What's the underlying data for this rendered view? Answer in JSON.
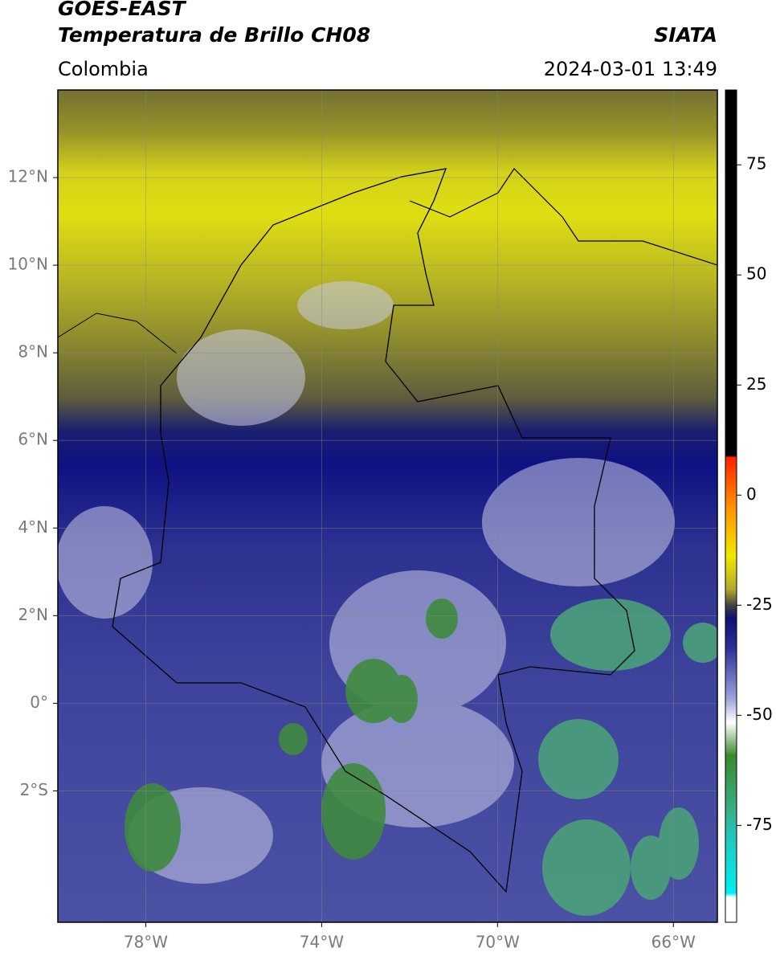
{
  "chart_data": {
    "type": "map",
    "title": "GOES-EAST",
    "subtitle": "Temperatura de Brillo CH08",
    "source": "SIATA",
    "region": "Colombia",
    "datetime": "2024-03-01 13:49",
    "xlim": [
      -80,
      -65
    ],
    "ylim": [
      -5,
      14
    ],
    "xticks": [
      {
        "value": -78,
        "label": "78°W"
      },
      {
        "value": -74,
        "label": "74°W"
      },
      {
        "value": -70,
        "label": "70°W"
      },
      {
        "value": -66,
        "label": "66°W"
      }
    ],
    "yticks": [
      {
        "value": 12,
        "label": "12°N"
      },
      {
        "value": 10,
        "label": "10°N"
      },
      {
        "value": 8,
        "label": "8°N"
      },
      {
        "value": 6,
        "label": "6°N"
      },
      {
        "value": 4,
        "label": "4°N"
      },
      {
        "value": 2,
        "label": "2°N"
      },
      {
        "value": 0,
        "label": "0°"
      },
      {
        "value": -2,
        "label": "2°S"
      }
    ],
    "grid": true,
    "colorbar": {
      "lim": [
        -97,
        92
      ],
      "ticks": [
        75,
        50,
        25,
        0,
        -25,
        -50,
        -75
      ]
    }
  }
}
